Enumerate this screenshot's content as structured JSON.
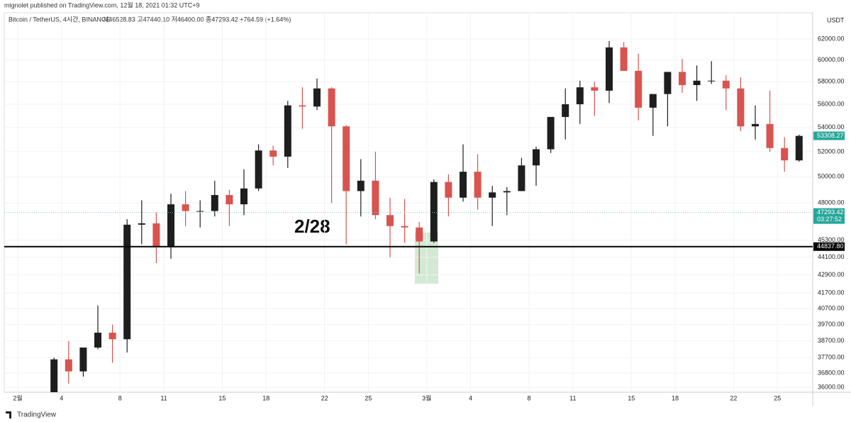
{
  "publisher_line": "mignolet published on TradingView.com, 12월 18, 2021 01:32 UTC+9",
  "footer": "TradingView",
  "chart_data": {
    "type": "candlestick",
    "title": "Bitcoin / TetherUS, 4시간, BINANCE",
    "ohlc_info": "시46528.83 고47440.10 저46400.00 종47293.42 +764.59 (+1.64%)",
    "axis_unit": "USDT",
    "annotation": "2/28",
    "log_scale": true,
    "up_color": "#1e1e1e",
    "down_color": "#d9534f",
    "categories": [
      "2월",
      null,
      null,
      "4",
      null,
      null,
      null,
      "8",
      null,
      null,
      "11",
      null,
      null,
      null,
      "15",
      null,
      null,
      "18",
      null,
      null,
      null,
      "22",
      null,
      null,
      "25",
      null,
      null,
      null,
      "3월",
      null,
      null,
      "4",
      null,
      null,
      null,
      "8",
      null,
      null,
      "11",
      null,
      null,
      null,
      "15",
      null,
      null,
      "18",
      null,
      null,
      null,
      "22",
      null,
      null,
      "25",
      null
    ],
    "open": [
      null,
      null,
      35500,
      37600,
      36900,
      38300,
      39200,
      38800,
      46400,
      46500,
      44800,
      47900,
      47400,
      47400,
      48600,
      47900,
      49100,
      52100,
      51600,
      55900,
      55800,
      57400,
      54100,
      48900,
      49700,
      47100,
      46300,
      46200,
      45200,
      49600,
      48400,
      50400,
      48400,
      48800,
      48900,
      50900,
      52200,
      54900,
      56000,
      57500,
      57200,
      61200,
      59000,
      55700,
      56900,
      58900,
      57700,
      58100,
      58100,
      57400,
      54100,
      54300,
      52300,
      51300
    ],
    "high": [
      null,
      null,
      37700,
      38700,
      38300,
      40900,
      39700,
      46800,
      48200,
      47300,
      48700,
      48900,
      48200,
      49700,
      49000,
      50600,
      52600,
      52500,
      56300,
      57500,
      58300,
      57500,
      54200,
      51400,
      52000,
      48400,
      48300,
      46600,
      49800,
      50200,
      52600,
      51800,
      49300,
      49200,
      51500,
      52400,
      54900,
      57400,
      58100,
      58000,
      61800,
      61700,
      60600,
      56900,
      58900,
      60100,
      59500,
      59900,
      58600,
      58400,
      55900,
      57200,
      53200,
      53400
    ],
    "low": [
      null,
      null,
      35400,
      36200,
      36600,
      38200,
      37400,
      38000,
      45000,
      43700,
      44000,
      46300,
      46200,
      47000,
      46300,
      47100,
      48900,
      50900,
      50700,
      53900,
      55500,
      48000,
      45000,
      47000,
      46800,
      44100,
      45100,
      43000,
      45100,
      47000,
      48100,
      47500,
      46300,
      47100,
      48900,
      49300,
      51900,
      53000,
      54300,
      55000,
      56100,
      59000,
      54600,
      53300,
      54100,
      57000,
      56300,
      57800,
      55500,
      53700,
      53000,
      52000,
      50400,
      51200
    ],
    "close": [
      null,
      null,
      37600,
      36900,
      38300,
      39200,
      38800,
      46400,
      46500,
      44800,
      47900,
      47400,
      47400,
      48600,
      47900,
      49100,
      52100,
      51600,
      55900,
      55800,
      57400,
      54100,
      48900,
      49700,
      47100,
      46300,
      46200,
      45200,
      49600,
      48400,
      50400,
      48400,
      48800,
      48900,
      50900,
      52200,
      54900,
      56000,
      57500,
      57200,
      61200,
      59000,
      55700,
      56900,
      58900,
      57700,
      58100,
      58100,
      57400,
      54100,
      54300,
      52300,
      51300,
      53300
    ],
    "ylim": [
      35720,
      64600
    ],
    "yticks": [
      {
        "value": 36000,
        "label": "36000.00"
      },
      {
        "value": 36800,
        "label": "36800.00"
      },
      {
        "value": 37700,
        "label": "37700.00"
      },
      {
        "value": 38700,
        "label": "38700.00"
      },
      {
        "value": 39700,
        "label": "39700.00"
      },
      {
        "value": 40700,
        "label": "40700.00"
      },
      {
        "value": 41700,
        "label": "41700.00"
      },
      {
        "value": 42900,
        "label": "42900.00"
      },
      {
        "value": 44100,
        "label": "44100.00"
      },
      {
        "value": 45300,
        "label": "45300.00"
      },
      {
        "value": 48000,
        "label": "48000.00"
      },
      {
        "value": 50000,
        "label": "50000.00"
      },
      {
        "value": 52000,
        "label": "52000.00"
      },
      {
        "value": 54000,
        "label": "54000.00"
      },
      {
        "value": 56000,
        "label": "56000.00"
      },
      {
        "value": 58000,
        "label": "58000.00"
      },
      {
        "value": 60000,
        "label": "60000.00"
      },
      {
        "value": 62000,
        "label": "62000.00"
      }
    ],
    "hline": {
      "value": 44837.8,
      "label": "44837.80"
    },
    "current_price": {
      "value": 47293.42,
      "label": "47293.42",
      "countdown": "03:27:52"
    },
    "last_price": {
      "value": 53308.27,
      "label": "53308.27"
    }
  }
}
